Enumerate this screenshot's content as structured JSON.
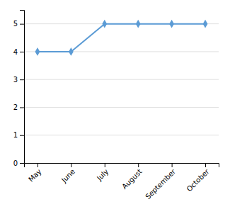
{
  "chart_data": {
    "type": "line",
    "categories": [
      "May",
      "June",
      "July",
      "August",
      "September",
      "October"
    ],
    "values": [
      4,
      4,
      5,
      5,
      5,
      5
    ],
    "color": "#5b9bd5",
    "marker": "diamond",
    "ylim": [
      0,
      5.5
    ],
    "yticks": [
      0,
      1,
      2,
      3,
      4,
      5
    ],
    "grid": true
  }
}
